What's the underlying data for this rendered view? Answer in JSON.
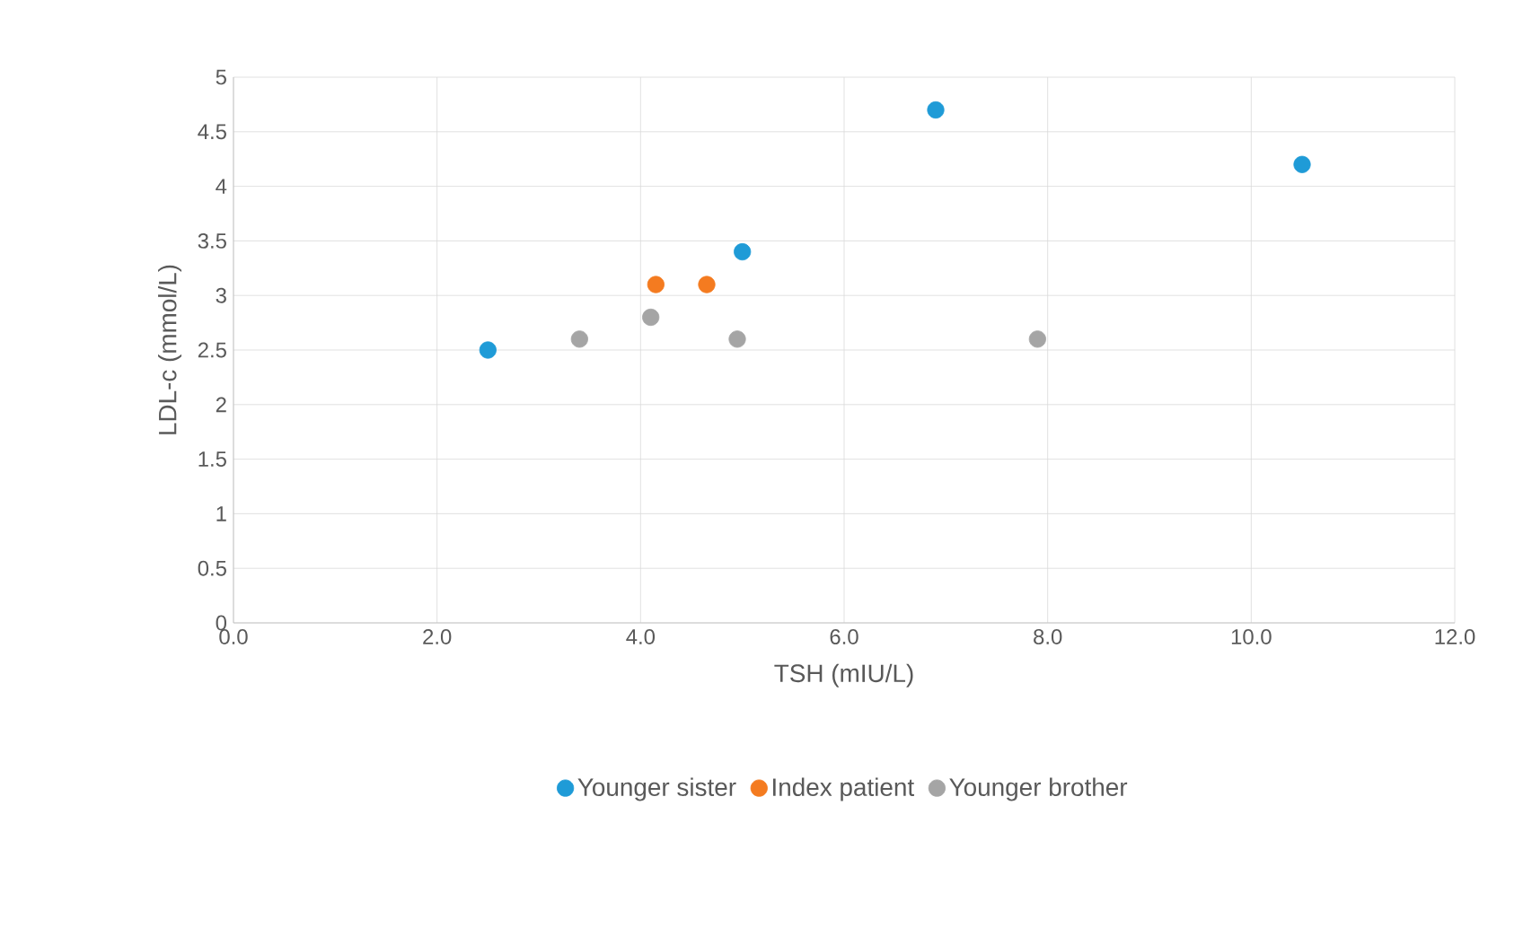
{
  "chart_data": {
    "type": "scatter",
    "xlabel": "TSH (mIU/L)",
    "ylabel": "LDL-c (mmol/L)",
    "xlim": [
      0,
      12
    ],
    "ylim": [
      0,
      5
    ],
    "xticks": [
      {
        "value": 0,
        "label": "0.0"
      },
      {
        "value": 2,
        "label": "2.0"
      },
      {
        "value": 4,
        "label": "4.0"
      },
      {
        "value": 6,
        "label": "6.0"
      },
      {
        "value": 8,
        "label": "8.0"
      },
      {
        "value": 10,
        "label": "10.0"
      },
      {
        "value": 12,
        "label": "12.0"
      }
    ],
    "yticks": [
      0,
      0.5,
      1,
      1.5,
      2,
      2.5,
      3,
      3.5,
      4,
      4.5,
      5
    ],
    "grid": true,
    "legend": "bottom",
    "marker": "circle",
    "series": [
      {
        "name": "Younger sister",
        "color": "#1f9bd7",
        "x": [
          2.5,
          5.0,
          6.9,
          10.5
        ],
        "values": [
          2.5,
          3.4,
          4.7,
          4.2
        ]
      },
      {
        "name": "Index patient",
        "color": "#f47b20",
        "x": [
          4.15,
          4.65
        ],
        "values": [
          3.1,
          3.1
        ]
      },
      {
        "name": "Younger brother",
        "color": "#a5a5a5",
        "x": [
          3.4,
          4.1,
          4.95,
          7.9
        ],
        "values": [
          2.6,
          2.8,
          2.6,
          2.6
        ]
      }
    ]
  }
}
